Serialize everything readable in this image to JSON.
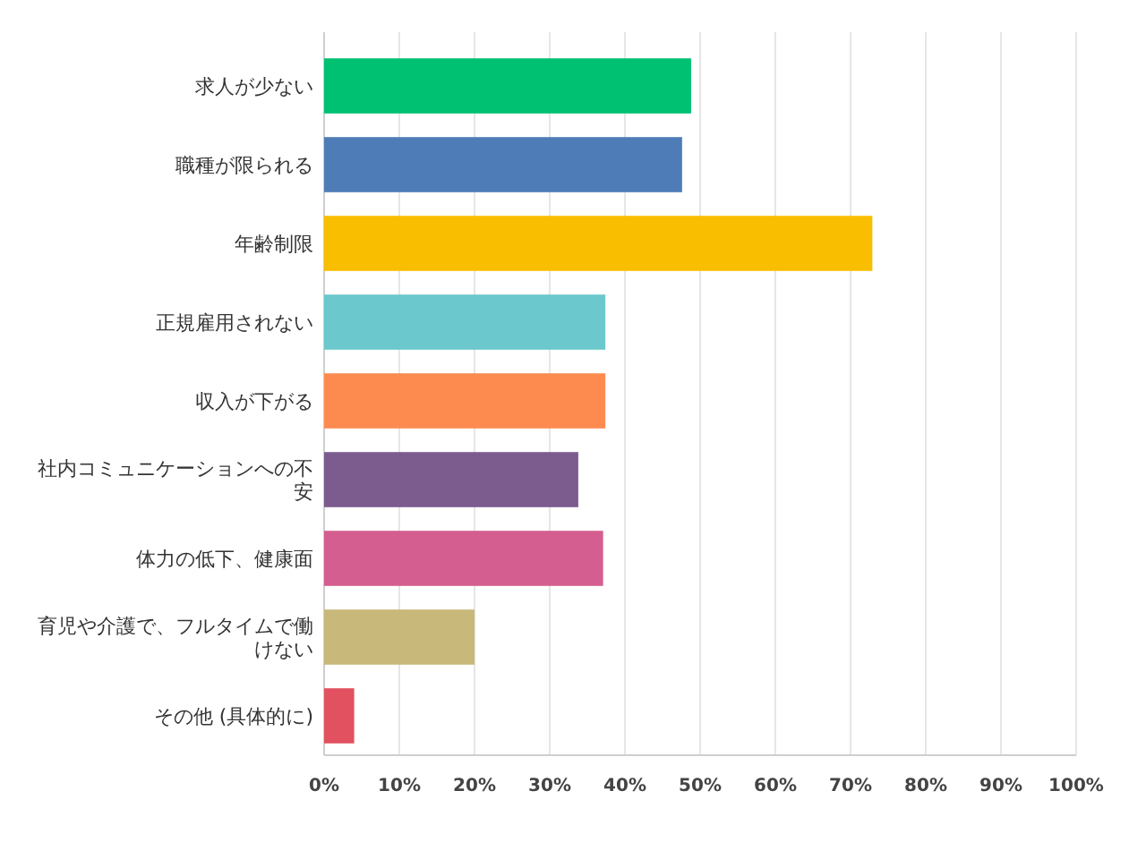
{
  "chart_data": {
    "type": "bar",
    "orientation": "horizontal",
    "categories": [
      "求人が少ない",
      "職種が限られる",
      "年齢制限",
      "正規雇用されない",
      "収入が下がる",
      "社内コミュニケーションへの不安",
      "体力の低下、健康面",
      "育児や介護で、フルタイムで働けない",
      "その他 (具体的に)"
    ],
    "values": [
      48.8,
      47.6,
      72.9,
      37.4,
      37.4,
      33.8,
      37.1,
      20.0,
      4.0
    ],
    "colors": [
      "#00c172",
      "#4e7cb6",
      "#f9be00",
      "#6bc8cc",
      "#fd8b50",
      "#7c5c8f",
      "#d45e8f",
      "#c8b87a",
      "#e1515f"
    ],
    "xlim": [
      0,
      100
    ],
    "xticks": [
      {
        "value": 0,
        "label": "0%"
      },
      {
        "value": 10,
        "label": "10%"
      },
      {
        "value": 20,
        "label": "20%"
      },
      {
        "value": 30,
        "label": "30%"
      },
      {
        "value": 40,
        "label": "40%"
      },
      {
        "value": 50,
        "label": "50%"
      },
      {
        "value": 60,
        "label": "60%"
      },
      {
        "value": 70,
        "label": "70%"
      },
      {
        "value": 80,
        "label": "80%"
      },
      {
        "value": 90,
        "label": "90%"
      },
      {
        "value": 100,
        "label": "100%"
      }
    ],
    "grid": "x"
  }
}
